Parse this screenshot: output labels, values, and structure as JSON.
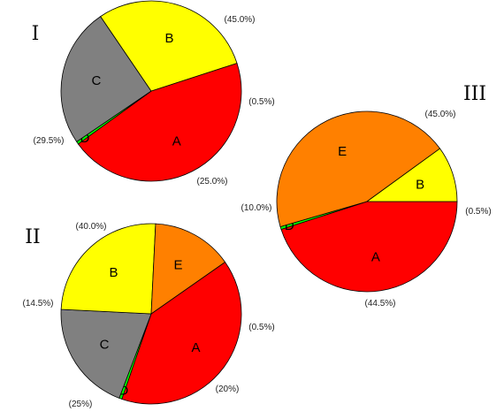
{
  "chart_data": [
    {
      "type": "pie",
      "title": "I",
      "slices": [
        {
          "label": "A",
          "value": 45.0,
          "pct_text": "(45.0%)",
          "color": "#ff0000"
        },
        {
          "label": "D",
          "value": 0.5,
          "pct_text": "(0.5%)",
          "color": "#00ff00"
        },
        {
          "label": "C",
          "value": 25.0,
          "pct_text": "(25.0%)",
          "color": "#808080"
        },
        {
          "label": "B",
          "value": 29.5,
          "pct_text": "(29.5%)",
          "color": "#ffff00"
        }
      ]
    },
    {
      "type": "pie",
      "title": "II",
      "slices": [
        {
          "label": "A",
          "value": 40.0,
          "pct_text": "(40.0%)",
          "color": "#ff0000"
        },
        {
          "label": "D",
          "value": 0.5,
          "pct_text": "(0.5%)",
          "color": "#00ff00"
        },
        {
          "label": "C",
          "value": 20,
          "pct_text": "(20%)",
          "color": "#808080"
        },
        {
          "label": "B",
          "value": 25,
          "pct_text": "(25%)",
          "color": "#ffff00"
        },
        {
          "label": "E",
          "value": 14.5,
          "pct_text": "(14.5%)",
          "color": "#ff8000"
        }
      ]
    },
    {
      "type": "pie",
      "title": "III",
      "slices": [
        {
          "label": "A",
          "value": 45.0,
          "pct_text": "(45.0%)",
          "color": "#ff0000"
        },
        {
          "label": "D",
          "value": 0.5,
          "pct_text": "(0.5%)",
          "color": "#00ff00"
        },
        {
          "label": "E",
          "value": 44.5,
          "pct_text": "(44.5%)",
          "color": "#ff8000"
        },
        {
          "label": "B",
          "value": 10.0,
          "pct_text": "(10.0%)",
          "color": "#ffff00"
        }
      ]
    }
  ]
}
